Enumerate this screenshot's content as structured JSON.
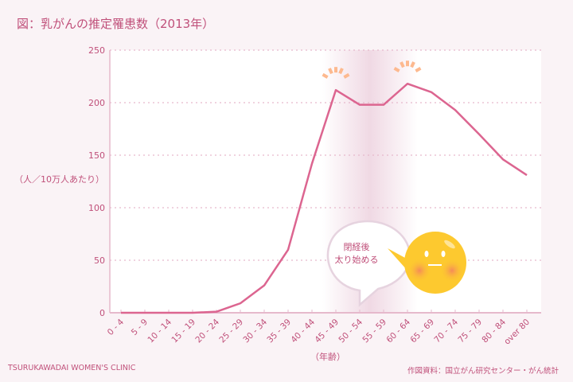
{
  "title": "図：乳がんの推定罹患数（2013年）",
  "footer": {
    "clinic": "TSURUKAWADAI WOMEN'S CLINIC",
    "source": "作図資料：国立がん研究センター・がん統計"
  },
  "annotation": {
    "line1": "閉経後",
    "line2": "太り始める"
  },
  "colors": {
    "line": "#dc6590",
    "text": "#c0507a",
    "background": "#faf3f6",
    "grid": "#e6b9cc",
    "sparkle": "#fdb98f",
    "face": "#fdc92f"
  },
  "chart_data": {
    "type": "line",
    "title": "図：乳がんの推定罹患数（2013年）",
    "xlabel": "（年齢）",
    "ylabel": "（人／10万人あたり）",
    "ylim": [
      0,
      250
    ],
    "yticks": [
      0,
      50,
      100,
      150,
      200,
      250
    ],
    "grid": true,
    "categories": [
      "0 - 4",
      "5 - 9",
      "10 - 14",
      "15 - 19",
      "20 - 24",
      "25 - 29",
      "30 - 34",
      "35 - 39",
      "40 - 44",
      "45 - 49",
      "50 - 54",
      "55 - 59",
      "60 - 64",
      "65 - 69",
      "70 - 74",
      "75 - 79",
      "80 - 84",
      "over 80"
    ],
    "values": [
      0,
      0,
      0,
      0,
      1,
      9,
      26,
      60,
      142,
      212,
      198,
      198,
      218,
      210,
      193,
      170,
      146,
      131
    ]
  }
}
